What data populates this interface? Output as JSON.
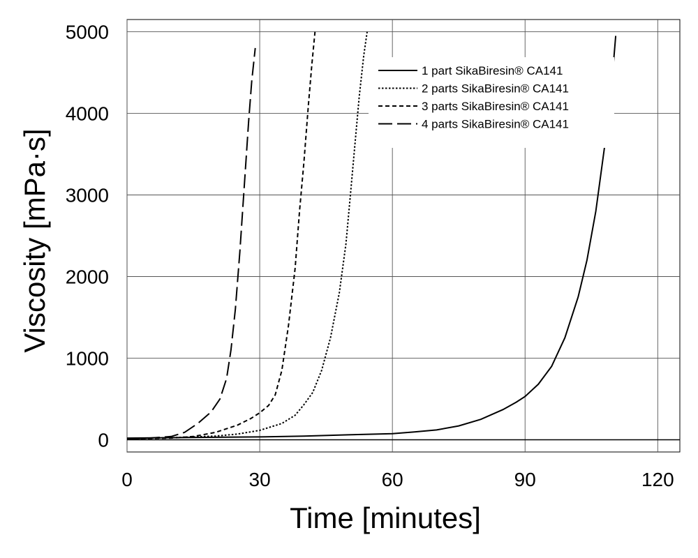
{
  "chart_data": {
    "type": "line",
    "title": "",
    "xlabel": "Time [minutes]",
    "ylabel": "Viscosity [mPa·s]",
    "xlim": [
      0,
      125
    ],
    "ylim": [
      -150,
      5150
    ],
    "xticks": [
      0,
      30,
      60,
      90,
      120
    ],
    "yticks": [
      0,
      1000,
      2000,
      3000,
      4000,
      5000
    ],
    "grid": true,
    "legend_position": "top-right",
    "line_color": "#000000",
    "series": [
      {
        "name": "1 part SikaBiresin® CA141",
        "line_style": "solid",
        "x": [
          0,
          10,
          20,
          30,
          40,
          50,
          60,
          65,
          70,
          75,
          80,
          85,
          88,
          90,
          93,
          96,
          99,
          102,
          104,
          106,
          108,
          109.5,
          110.5
        ],
        "y": [
          20,
          25,
          30,
          35,
          45,
          60,
          75,
          95,
          120,
          170,
          250,
          370,
          460,
          530,
          680,
          900,
          1250,
          1750,
          2200,
          2800,
          3600,
          4300,
          4950
        ]
      },
      {
        "name": "2 parts SikaBiresin® CA141",
        "line_style": "dotted",
        "x": [
          0,
          10,
          20,
          25,
          30,
          35,
          38,
          40,
          42,
          44,
          46,
          48,
          49.5,
          50.5,
          51.5,
          52.5,
          53.5,
          54.3
        ],
        "y": [
          10,
          25,
          45,
          70,
          115,
          200,
          300,
          430,
          580,
          850,
          1250,
          1800,
          2400,
          3000,
          3600,
          4200,
          4700,
          5000
        ]
      },
      {
        "name": "3 parts SikaBiresin® CA141",
        "line_style": "dashed",
        "x": [
          0,
          10,
          15,
          20,
          25,
          28,
          30,
          32,
          33.5,
          35,
          36.5,
          38,
          39,
          40,
          41,
          41.8,
          42.5
        ],
        "y": [
          10,
          20,
          40,
          90,
          180,
          260,
          330,
          420,
          550,
          850,
          1400,
          2100,
          2800,
          3400,
          4100,
          4600,
          5000
        ]
      },
      {
        "name": "4 parts SikaBiresin® CA141",
        "line_style": "long-dash",
        "x": [
          0,
          5,
          10,
          13,
          16,
          19,
          21,
          22.5,
          23.5,
          24.5,
          25.5,
          26.5,
          27.5,
          28.2,
          29
        ],
        "y": [
          10,
          20,
          40,
          90,
          200,
          340,
          500,
          750,
          1100,
          1600,
          2300,
          3100,
          3900,
          4400,
          4800
        ]
      }
    ]
  }
}
